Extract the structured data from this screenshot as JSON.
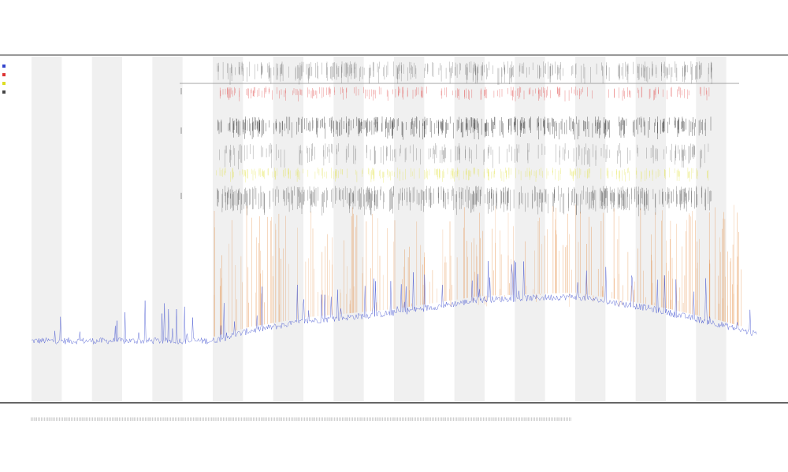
{
  "chart_data": {
    "type": "line",
    "title": "",
    "subtitle_lines": [
      "",
      ""
    ],
    "xlabel": "",
    "ylabel": "",
    "grid": true,
    "legend_position": "top-left",
    "bands": 12,
    "tick_count": 360,
    "series": [
      {
        "color": "#3344cc"
      },
      {
        "color": "#e07820"
      },
      {
        "color": "#444444"
      },
      {
        "color": "#dddd22"
      },
      {
        "color": "#dd3333"
      }
    ],
    "baseline_profile": [
      [
        0.0,
        0.08
      ],
      [
        0.25,
        0.08
      ],
      [
        0.3,
        0.14
      ],
      [
        0.38,
        0.2
      ],
      [
        0.5,
        0.25
      ],
      [
        0.62,
        0.33
      ],
      [
        0.75,
        0.35
      ],
      [
        0.85,
        0.28
      ],
      [
        0.95,
        0.18
      ],
      [
        1.0,
        0.12
      ]
    ],
    "activity_start": 0.25,
    "legend": [
      {
        "color": "#3344cc",
        "text": ""
      },
      {
        "color": "#dd3333",
        "text": ""
      },
      {
        "color": "#dddd22",
        "text": ""
      },
      {
        "color": "#444444",
        "text": ""
      }
    ]
  }
}
